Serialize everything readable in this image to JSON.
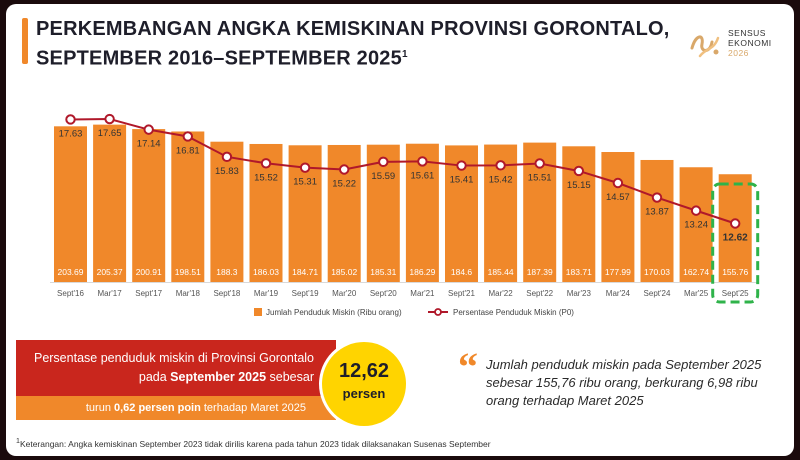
{
  "header": {
    "title_line1": "PERKEMBANGAN ANGKA KEMISKINAN PROVINSI GORONTALO,",
    "title_line2": "SEPTEMBER 2016–SEPTEMBER 2025",
    "title_sup": "1",
    "logo_line1": "SENSUS",
    "logo_line2": "EKONOMI",
    "logo_line3": "2026"
  },
  "chart_data": {
    "type": "bar",
    "title": "Perkembangan Angka Kemiskinan Provinsi Gorontalo, September 2016–September 2025",
    "categories": [
      "Sept'16",
      "Mar'17",
      "Sept'17",
      "Mar'18",
      "Sept'18",
      "Mar'19",
      "Sept'19",
      "Mar'20",
      "Sept'20",
      "Mar'21",
      "Sept'21",
      "Mar'22",
      "Sept'22",
      "Mar'23",
      "Mar'24",
      "Sept'24",
      "Mar'25",
      "Sept'25"
    ],
    "series": [
      {
        "name": "Jumlah Penduduk Miskin (Ribu orang)",
        "type": "bar",
        "values": [
          203.69,
          205.37,
          200.91,
          198.51,
          188.3,
          186.03,
          184.71,
          185.02,
          185.31,
          186.29,
          184.6,
          185.44,
          187.39,
          183.71,
          177.99,
          170.03,
          162.74,
          155.76
        ],
        "labels": [
          "203.69",
          "205.37",
          "200.91",
          "198.51",
          "188.3",
          "186.03",
          "184.71",
          "185.02",
          "185.31",
          "186.29",
          "184.6",
          "185.44",
          "187.39",
          "183.71",
          "177.99",
          "170.03",
          "162.74",
          "155.76"
        ]
      },
      {
        "name": "Persentase Penduduk Miskin (P0)",
        "type": "line",
        "values": [
          17.63,
          17.65,
          17.14,
          16.81,
          15.83,
          15.52,
          15.31,
          15.22,
          15.59,
          15.61,
          15.41,
          15.42,
          15.51,
          15.15,
          14.57,
          13.87,
          13.24,
          12.62
        ],
        "labels": [
          "17.63",
          "17.65",
          "17.14",
          "16.81",
          "15.83",
          "15.52",
          "15.31",
          "15.22",
          "15.59",
          "15.61",
          "15.41",
          "15.42",
          "15.51",
          "15.15",
          "14.57",
          "13.87",
          "13.24",
          "12.62"
        ]
      }
    ],
    "legend_bar": "Jumlah Penduduk Miskin (Ribu orang)",
    "legend_line": "Persentase Penduduk Miskin (P0)",
    "highlight_category": "Sept'25",
    "colors": {
      "bar": "#f0882a",
      "line": "#b0182a",
      "marker_fill": "#ffffff",
      "highlight_border": "#2fb34a",
      "label_text": "#333333",
      "bar_label_text": "#ffffff"
    }
  },
  "summary": {
    "left_text_part1": "Persentase penduduk miskin di Provinsi Gorontalo pada ",
    "left_text_bold": "September 2025",
    "left_text_part2": " sebesar",
    "strip_text_part1": "turun ",
    "strip_text_bold": "0,62 persen poin",
    "strip_text_part2": " terhadap Maret 2025",
    "badge_value": "12,62",
    "badge_unit": "persen",
    "quote": "Jumlah penduduk miskin pada September 2025 sebesar 155,76 ribu orang, berkurang 6,98 ribu orang terhadap Maret 2025"
  },
  "footnote": {
    "sup": "1",
    "text": "Keterangan: Angka kemiskinan September 2023 tidak dirilis karena pada tahun 2023 tidak dilaksanakan Susenas September"
  }
}
